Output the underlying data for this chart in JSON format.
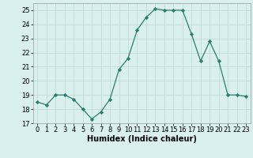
{
  "x": [
    0,
    1,
    2,
    3,
    4,
    5,
    6,
    7,
    8,
    9,
    10,
    11,
    12,
    13,
    14,
    15,
    16,
    17,
    18,
    19,
    20,
    21,
    22,
    23
  ],
  "y": [
    18.5,
    18.3,
    19.0,
    19.0,
    18.7,
    18.0,
    17.3,
    17.8,
    18.7,
    20.8,
    21.6,
    23.6,
    24.5,
    25.1,
    25.0,
    25.0,
    25.0,
    23.3,
    21.4,
    22.8,
    21.4,
    19.0,
    19.0,
    18.9
  ],
  "line_color": "#2d7d6e",
  "marker": "D",
  "marker_size": 2.2,
  "bg_color": "#d9f0ee",
  "grid_color": "#b8d8d4",
  "xlabel": "Humidex (Indice chaleur)",
  "xlim": [
    -0.5,
    23.5
  ],
  "ylim": [
    17,
    25.5
  ],
  "yticks": [
    17,
    18,
    19,
    20,
    21,
    22,
    23,
    24,
    25
  ],
  "xticks": [
    0,
    1,
    2,
    3,
    4,
    5,
    6,
    7,
    8,
    9,
    10,
    11,
    12,
    13,
    14,
    15,
    16,
    17,
    18,
    19,
    20,
    21,
    22,
    23
  ],
  "axis_fontsize": 6.5,
  "tick_fontsize": 6.0,
  "xlabel_fontsize": 7.0
}
